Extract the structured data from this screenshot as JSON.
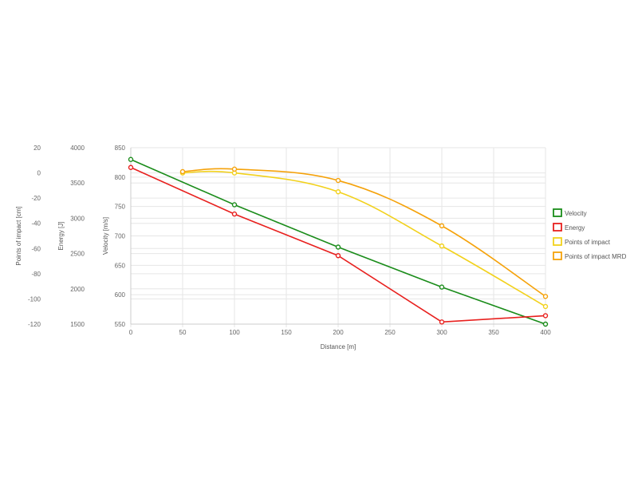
{
  "chart_data": {
    "type": "line",
    "xlabel": "Distance [m]",
    "x_ticks": [
      0,
      50,
      100,
      150,
      200,
      250,
      300,
      350,
      400
    ],
    "xlim": [
      0,
      400
    ],
    "axes": [
      {
        "id": "poi",
        "label": "Points of impact [cm]",
        "ticks": [
          20,
          0,
          -20,
          -40,
          -60,
          -80,
          -100,
          -120
        ],
        "ylim": [
          -120,
          20
        ]
      },
      {
        "id": "energy",
        "label": "Energy [J]",
        "ticks": [
          4000,
          3500,
          3000,
          2500,
          2000,
          1500
        ],
        "ylim": [
          1500,
          4000
        ]
      },
      {
        "id": "velocity",
        "label": "Velocity [m/s]",
        "ticks": [
          850,
          800,
          750,
          700,
          650,
          600,
          550
        ],
        "ylim": [
          550,
          850
        ]
      }
    ],
    "series": [
      {
        "name": "Velocity",
        "axis": "velocity",
        "color": "#1a8c1a",
        "x": [
          0,
          100,
          200,
          300,
          400
        ],
        "y": [
          830,
          753,
          681,
          613,
          550
        ],
        "smooth": false
      },
      {
        "name": "Energy",
        "axis": "energy",
        "color": "#e8201e",
        "x": [
          0,
          100,
          200,
          300,
          400
        ],
        "y": [
          3720,
          3060,
          2470,
          1530,
          1620
        ],
        "smooth": false
      },
      {
        "name": "Points of impact",
        "axis": "poi",
        "color": "#f2d11c",
        "x": [
          50,
          100,
          200,
          300,
          400
        ],
        "y": [
          0,
          0,
          -15,
          -58,
          -106
        ],
        "smooth": true
      },
      {
        "name": "Points of impact MRD",
        "axis": "poi",
        "color": "#f5a20a",
        "x": [
          50,
          100,
          200,
          300,
          400
        ],
        "y": [
          1,
          3,
          -6,
          -42,
          -98
        ],
        "smooth": true
      }
    ],
    "grid": true,
    "legend_position": "right"
  }
}
